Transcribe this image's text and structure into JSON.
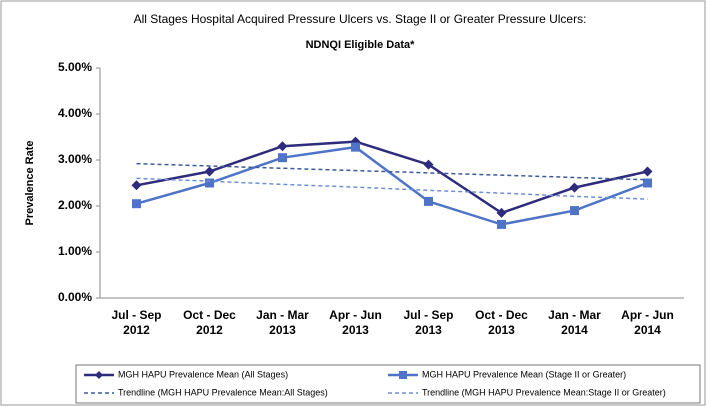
{
  "chart_data": {
    "type": "line",
    "title": "All Stages Hospital Acquired Pressure Ulcers vs. Stage II or Greater Pressure Ulcers:",
    "subtitle": "NDNQI Eligible Data*",
    "y_label": "Prevalence Rate",
    "categories": [
      [
        "Jul - Sep",
        "2012"
      ],
      [
        "Oct - Dec",
        "2012"
      ],
      [
        "Jan - Mar",
        "2013"
      ],
      [
        "Apr - Jun",
        "2013"
      ],
      [
        "Jul - Sep",
        "2013"
      ],
      [
        "Oct - Dec",
        "2013"
      ],
      [
        "Jan - Mar",
        "2014"
      ],
      [
        "Apr - Jun",
        "2014"
      ]
    ],
    "series": [
      {
        "name": "MGH HAPU Prevalence Mean (All Stages)",
        "color": "#2e2a7c",
        "dashed": false,
        "markers": "diamond",
        "values": [
          2.45,
          2.75,
          3.3,
          3.4,
          2.9,
          1.85,
          2.4,
          2.75
        ]
      },
      {
        "name": "MGH HAPU Prevalence Mean (Stage II or Greater)",
        "color": "#4f74c7",
        "dashed": false,
        "markers": "square",
        "values": [
          2.05,
          2.5,
          3.05,
          3.28,
          2.1,
          1.6,
          1.9,
          2.5
        ]
      },
      {
        "name": "Trendline (MGH HAPU Prevalence Mean:All Stages)",
        "color": "#3a5a9c",
        "dashed": true,
        "markers": "none",
        "values": [
          2.92,
          2.87,
          2.82,
          2.77,
          2.72,
          2.67,
          2.62,
          2.57
        ]
      },
      {
        "name": "Trendline (MGH HAPU Prevalence Mean:Stage II or Greater)",
        "color": "#6f8fd4",
        "dashed": true,
        "markers": "none",
        "values": [
          2.6,
          2.54,
          2.47,
          2.41,
          2.34,
          2.28,
          2.21,
          2.15
        ]
      }
    ],
    "ylim": [
      0,
      5
    ],
    "yticks": [
      {
        "value": 0,
        "label": "0.00%"
      },
      {
        "value": 1,
        "label": "1.00%"
      },
      {
        "value": 2,
        "label": "2.00%"
      },
      {
        "value": 3,
        "label": "3.00%"
      },
      {
        "value": 4,
        "label": "4.00%"
      },
      {
        "value": 5,
        "label": "5.00%"
      }
    ],
    "grid": false,
    "legend": "bottom"
  }
}
